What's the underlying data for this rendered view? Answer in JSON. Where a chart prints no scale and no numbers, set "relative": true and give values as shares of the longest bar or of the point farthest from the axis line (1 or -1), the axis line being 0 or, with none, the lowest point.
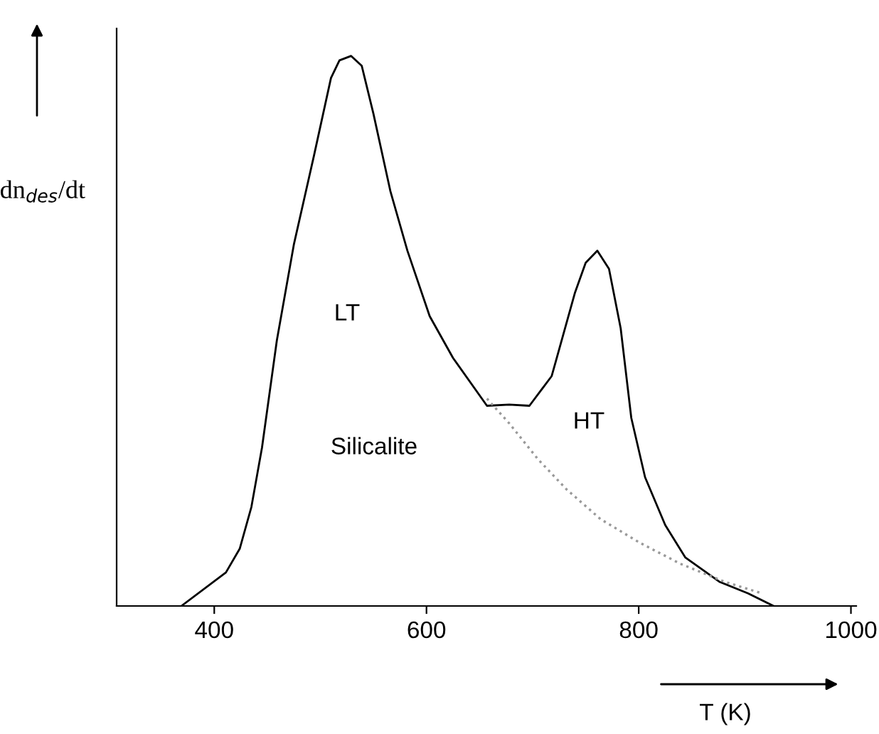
{
  "chart_data": {
    "type": "line",
    "relative": true,
    "xlabel": "T (K)",
    "ylabel": "dn$_{des}$/dt",
    "xlim": [
      308,
      1005
    ],
    "xticks": [
      400,
      600,
      800,
      1000
    ],
    "grid": false,
    "legend": false,
    "marker": "none",
    "series": [
      {
        "color": "#000000",
        "line_style": "solid",
        "x": [
          369,
          411,
          424,
          435,
          445,
          459,
          475,
          494,
          510,
          518,
          529,
          539,
          550,
          566,
          582,
          603,
          625,
          657,
          678,
          697,
          718,
          740,
          750,
          761,
          772,
          783,
          793,
          806,
          825,
          844,
          876,
          903,
          927
        ],
        "values": [
          0,
          0.061,
          0.104,
          0.18,
          0.288,
          0.483,
          0.657,
          0.819,
          0.96,
          0.992,
          1.0,
          0.982,
          0.895,
          0.754,
          0.646,
          0.527,
          0.451,
          0.364,
          0.366,
          0.364,
          0.418,
          0.57,
          0.624,
          0.646,
          0.613,
          0.505,
          0.342,
          0.234,
          0.147,
          0.088,
          0.044,
          0.023,
          0
        ]
      },
      {
        "color": "#999999",
        "line_style": "dotted",
        "x": [
          657,
          678,
          705,
          732,
          764,
          801,
          839,
          881,
          916
        ],
        "values": [
          0.377,
          0.332,
          0.267,
          0.212,
          0.158,
          0.115,
          0.077,
          0.044,
          0.023
        ]
      }
    ],
    "annotations": [
      "LT",
      "Silicalite",
      "HT"
    ]
  }
}
